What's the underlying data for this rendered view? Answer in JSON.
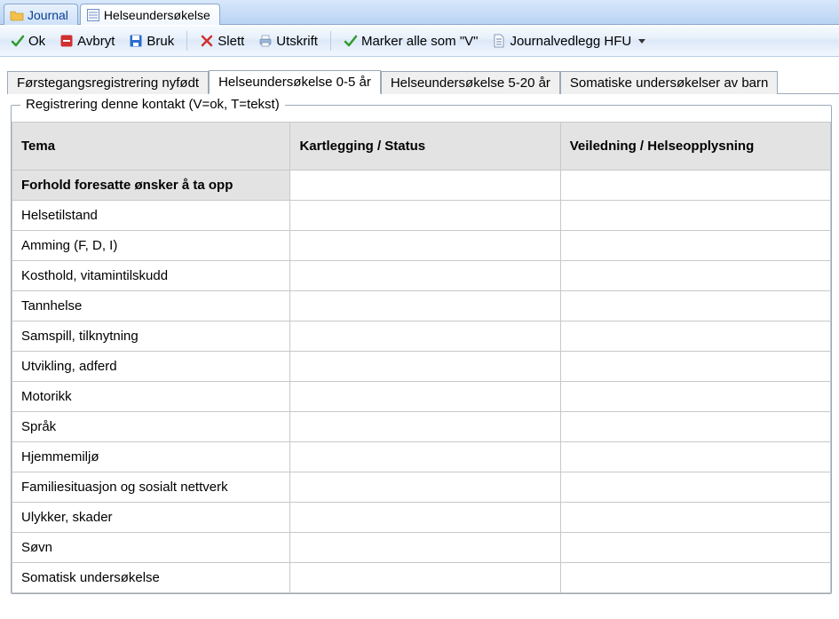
{
  "window_tabs": [
    {
      "label": "Journal",
      "icon": "folder"
    },
    {
      "label": "Helseundersøkelse",
      "icon": "form"
    }
  ],
  "active_window_tab_index": 1,
  "toolbar": [
    {
      "kind": "btn",
      "name": "ok-button",
      "icon": "check-green",
      "label": "Ok"
    },
    {
      "kind": "btn",
      "name": "avbryt-button",
      "icon": "stop-red",
      "label": "Avbryt"
    },
    {
      "kind": "btn",
      "name": "bruk-button",
      "icon": "save",
      "label": "Bruk"
    },
    {
      "kind": "sep"
    },
    {
      "kind": "btn",
      "name": "slett-button",
      "icon": "delete-red",
      "label": "Slett"
    },
    {
      "kind": "btn",
      "name": "utskrift-button",
      "icon": "printer",
      "label": "Utskrift"
    },
    {
      "kind": "sep"
    },
    {
      "kind": "btn",
      "name": "marker-alle-button",
      "icon": "check-green",
      "label": "Marker alle som \"V\""
    },
    {
      "kind": "dropdown",
      "name": "journalvedlegg-dropdown",
      "icon": "document",
      "label": "Journalvedlegg HFU"
    }
  ],
  "content_tabs": [
    "Førstegangsregistrering nyfødt",
    "Helseundersøkelse 0-5 år",
    "Helseundersøkelse 5-20 år",
    "Somatiske undersøkelser av barn"
  ],
  "active_content_tab_index": 1,
  "frame_legend": "Registrering denne kontakt (V=ok, T=tekst)",
  "columns": [
    "Tema",
    "Kartlegging / Status",
    "Veiledning / Helseopplysning"
  ],
  "rows": [
    {
      "tema": "Forhold foresatte ønsker å ta opp",
      "kartlegging": "",
      "veiledning": "",
      "selected": true
    },
    {
      "tema": "Helsetilstand",
      "kartlegging": "",
      "veiledning": ""
    },
    {
      "tema": "Amming (F, D, I)",
      "kartlegging": "",
      "veiledning": ""
    },
    {
      "tema": "Kosthold, vitamintilskudd",
      "kartlegging": "",
      "veiledning": ""
    },
    {
      "tema": "Tannhelse",
      "kartlegging": "",
      "veiledning": ""
    },
    {
      "tema": "Samspill, tilknytning",
      "kartlegging": "",
      "veiledning": ""
    },
    {
      "tema": "Utvikling, adferd",
      "kartlegging": "",
      "veiledning": ""
    },
    {
      "tema": "Motorikk",
      "kartlegging": "",
      "veiledning": ""
    },
    {
      "tema": "Språk",
      "kartlegging": "",
      "veiledning": ""
    },
    {
      "tema": "Hjemmemiljø",
      "kartlegging": "",
      "veiledning": ""
    },
    {
      "tema": "Familiesituasjon og sosialt nettverk",
      "kartlegging": "",
      "veiledning": ""
    },
    {
      "tema": "Ulykker, skader",
      "kartlegging": "",
      "veiledning": ""
    },
    {
      "tema": "Søvn",
      "kartlegging": "",
      "veiledning": ""
    },
    {
      "tema": "Somatisk undersøkelse",
      "kartlegging": "",
      "veiledning": ""
    }
  ],
  "colors": {
    "tab_bar_top": "#d9e8fb",
    "tab_bar_bottom": "#b9d3f3",
    "tab_border": "#8aa7cc",
    "toolbar_border": "#b9cde6",
    "content_tab_border": "#9aa9b8",
    "grid_border": "#c8c8c8",
    "grid_header_bg": "#e3e3e3",
    "selected_row_bg": "#e3e3e3",
    "accent_green": "#2e9b2e",
    "accent_red": "#d03030",
    "accent_blue": "#2a6cd0",
    "text": "#000000"
  }
}
